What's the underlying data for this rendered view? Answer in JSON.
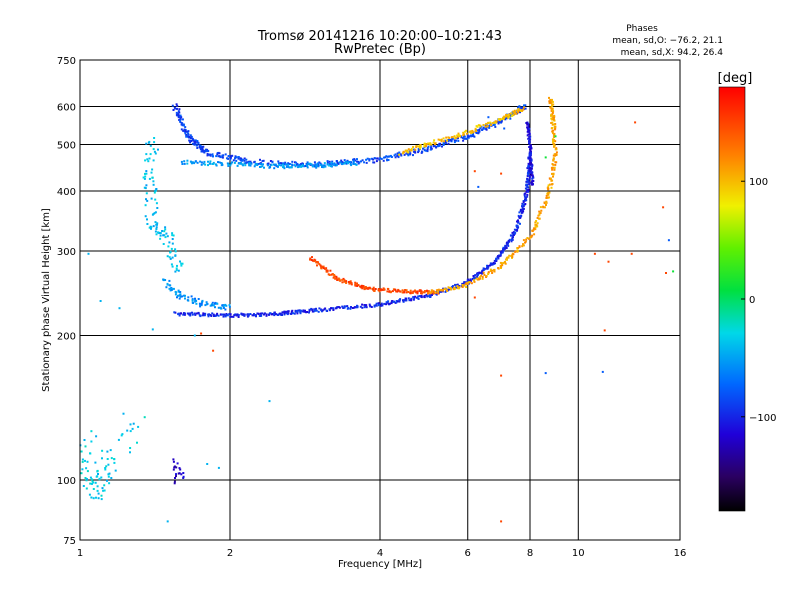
{
  "chart_data": {
    "type": "scatter",
    "title": "Tromsø 20141216 10:20:00–10:21:43",
    "subtitle": "RwPretec (Bp)",
    "xlabel": "Frequency [MHz]",
    "ylabel": "Stationary phase Virtual Height [km]",
    "x_scale": "log",
    "y_scale": "log",
    "xlim": [
      1,
      16
    ],
    "ylim": [
      75,
      750
    ],
    "x_ticks": [
      1,
      2,
      4,
      6,
      8,
      10,
      16
    ],
    "x_tick_labels": [
      "1",
      "2",
      "4",
      "6",
      "8",
      "10",
      "16"
    ],
    "y_ticks": [
      75,
      100,
      200,
      300,
      400,
      500,
      600,
      750
    ],
    "y_tick_labels": [
      "75",
      "100",
      "200",
      "300",
      "400",
      "500",
      "600",
      "750"
    ],
    "grid": true,
    "stats": {
      "heading": "Phases",
      "line1": "mean, sd,O: −76.2, 21.1",
      "line2": "mean, sd,X:  94.2, 26.4"
    },
    "colorbar": {
      "label": "[deg]",
      "range": [
        -180,
        180
      ],
      "ticks": [
        100,
        0,
        -100
      ],
      "tick_labels": [
        "100",
        "0",
        "−100"
      ]
    },
    "traces": [
      {
        "kind": "curve",
        "phase": -90,
        "jitter": 0.012,
        "n": 55,
        "pts": [
          [
            1.55,
            600
          ],
          [
            1.65,
            520
          ],
          [
            1.8,
            480
          ],
          [
            2.2,
            460
          ],
          [
            3.0,
            455
          ],
          [
            4.0,
            465
          ],
          [
            5.0,
            490
          ],
          [
            6.0,
            520
          ],
          [
            7.0,
            560
          ],
          [
            7.8,
            600
          ]
        ]
      },
      {
        "kind": "curve",
        "phase": -55,
        "jitter": 0.01,
        "n": 40,
        "pts": [
          [
            1.6,
            460
          ],
          [
            2.0,
            455
          ],
          [
            2.5,
            450
          ],
          [
            3.0,
            452
          ],
          [
            3.6,
            458
          ]
        ]
      },
      {
        "kind": "curve",
        "phase": 100,
        "jitter": 0.01,
        "n": 35,
        "pts": [
          [
            4.4,
            480
          ],
          [
            5.0,
            500
          ],
          [
            6.0,
            530
          ],
          [
            7.0,
            565
          ],
          [
            7.8,
            595
          ]
        ]
      },
      {
        "kind": "curve",
        "phase": -60,
        "jitter": 0.015,
        "n": 30,
        "pts": [
          [
            1.48,
            260
          ],
          [
            1.6,
            240
          ],
          [
            1.8,
            232
          ],
          [
            2.0,
            228
          ]
        ]
      },
      {
        "kind": "curve",
        "phase": -100,
        "jitter": 0.008,
        "n": 60,
        "pts": [
          [
            1.55,
            222
          ],
          [
            2.0,
            220
          ],
          [
            2.5,
            222
          ],
          [
            3.0,
            226
          ],
          [
            4.0,
            232
          ],
          [
            5.0,
            242
          ],
          [
            6.0,
            258
          ],
          [
            6.8,
            285
          ],
          [
            7.5,
            330
          ],
          [
            7.9,
            400
          ],
          [
            8.0,
            470
          ]
        ]
      },
      {
        "kind": "curve",
        "phase": 150,
        "jitter": 0.008,
        "n": 45,
        "pts": [
          [
            2.9,
            290
          ],
          [
            3.3,
            262
          ],
          [
            3.8,
            250
          ],
          [
            4.5,
            247
          ],
          [
            5.2,
            246
          ]
        ]
      },
      {
        "kind": "curve",
        "phase": 110,
        "jitter": 0.009,
        "n": 40,
        "pts": [
          [
            5.0,
            245
          ],
          [
            6.0,
            255
          ],
          [
            7.0,
            280
          ],
          [
            8.0,
            320
          ],
          [
            8.7,
            390
          ],
          [
            9.0,
            470
          ],
          [
            8.9,
            560
          ],
          [
            8.8,
            620
          ]
        ]
      },
      {
        "kind": "curve",
        "phase": -110,
        "jitter": 0.006,
        "n": 30,
        "pts": [
          [
            7.9,
            560
          ],
          [
            8.0,
            500
          ],
          [
            8.05,
            450
          ],
          [
            8.1,
            410
          ]
        ]
      },
      {
        "kind": "curve",
        "phase": -40,
        "jitter": 0.03,
        "n": 28,
        "pts": [
          [
            1.4,
            510
          ],
          [
            1.38,
            420
          ],
          [
            1.4,
            340
          ],
          [
            1.5,
            320
          ],
          [
            1.58,
            270
          ]
        ]
      },
      {
        "kind": "curve",
        "phase": -35,
        "jitter": 0.05,
        "n": 22,
        "pts": [
          [
            1.02,
            125
          ],
          [
            1.05,
            100
          ],
          [
            1.08,
            95
          ],
          [
            1.15,
            108
          ],
          [
            1.3,
            135
          ]
        ]
      },
      {
        "kind": "curve",
        "phase": -120,
        "jitter": 0.02,
        "n": 10,
        "pts": [
          [
            1.55,
            110
          ],
          [
            1.57,
            100
          ],
          [
            1.6,
            105
          ]
        ]
      },
      {
        "kind": "scatter",
        "phase": -45,
        "pts": [
          [
            1.04,
            296
          ],
          [
            1.1,
            236
          ],
          [
            1.2,
            228
          ],
          [
            1.4,
            206
          ],
          [
            1.7,
            200
          ],
          [
            2.4,
            146
          ],
          [
            1.8,
            108
          ],
          [
            1.9,
            106
          ],
          [
            1.5,
            82
          ]
        ]
      },
      {
        "kind": "scatter",
        "phase": 150,
        "pts": [
          [
            6.2,
            440
          ],
          [
            7.0,
            435
          ],
          [
            1.75,
            202
          ],
          [
            1.85,
            186
          ],
          [
            10.8,
            296
          ],
          [
            11.5,
            285
          ],
          [
            12.8,
            296
          ],
          [
            13.0,
            556
          ],
          [
            14.8,
            370
          ],
          [
            15.0,
            270
          ],
          [
            11.3,
            205
          ],
          [
            7.0,
            165
          ],
          [
            7.0,
            82
          ],
          [
            6.2,
            240
          ]
        ]
      },
      {
        "kind": "scatter",
        "phase": 10,
        "pts": [
          [
            8.6,
            470
          ],
          [
            9.0,
            520
          ],
          [
            15.5,
            272
          ]
        ]
      },
      {
        "kind": "scatter",
        "phase": -80,
        "pts": [
          [
            6.3,
            408
          ],
          [
            8.6,
            167
          ],
          [
            11.2,
            168
          ],
          [
            15.2,
            316
          ],
          [
            6.6,
            570
          ],
          [
            7.1,
            540
          ]
        ]
      }
    ]
  }
}
